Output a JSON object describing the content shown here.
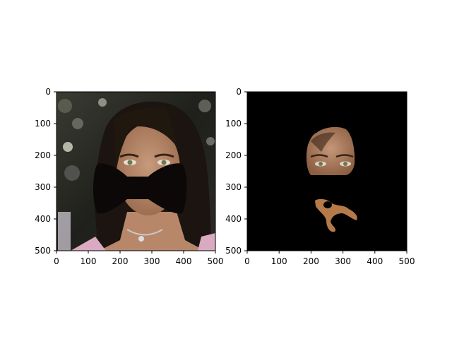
{
  "figure": {
    "panels": [
      {
        "image_description": "portrait photograph of a woman with long dark hair, lower face covered by a black bow-tie shaped occlusion",
        "xticks": [
          "0",
          "100",
          "200",
          "300",
          "400",
          "500"
        ],
        "yticks": [
          "0",
          "100",
          "200",
          "300",
          "400",
          "500"
        ]
      },
      {
        "image_description": "segmentation mask result showing skin/face region on black background",
        "xticks": [
          "0",
          "100",
          "200",
          "300",
          "400",
          "500"
        ],
        "yticks": [
          "0",
          "100",
          "200",
          "300",
          "400",
          "500"
        ]
      }
    ]
  }
}
